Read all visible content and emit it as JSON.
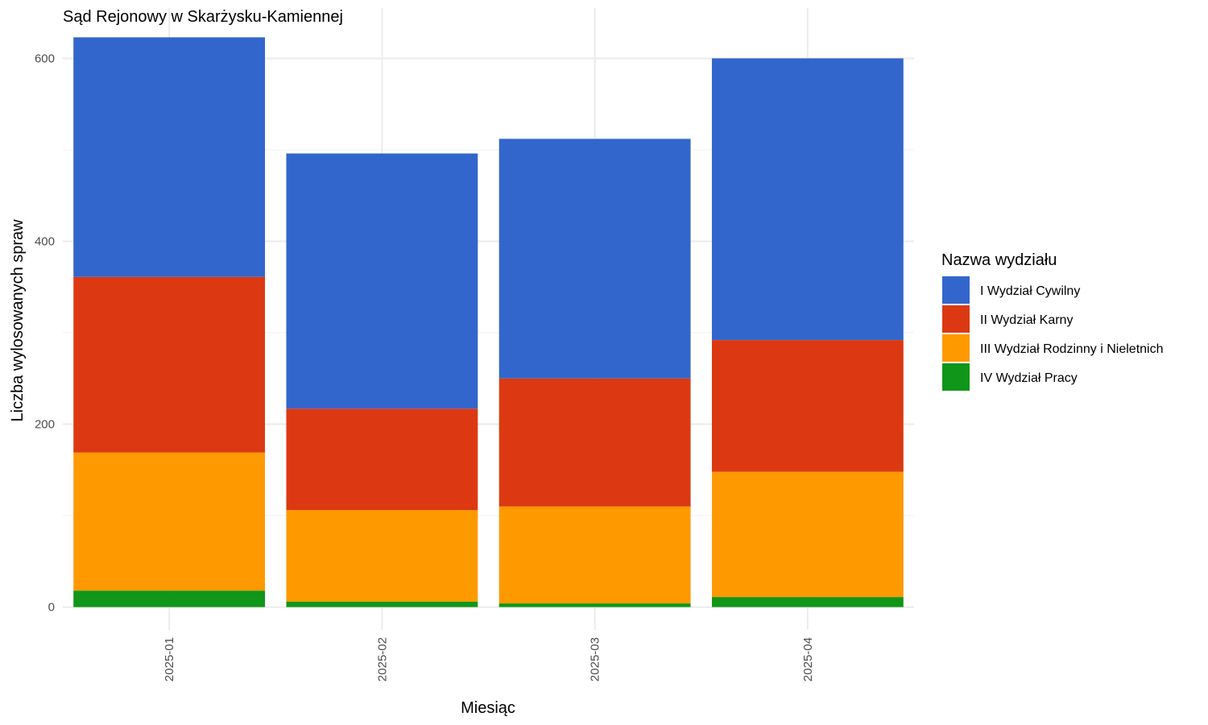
{
  "chart_data": {
    "type": "bar",
    "stacked": true,
    "title": "Sąd Rejonowy w Skarżysku-Kamiennej",
    "xlabel": "Miesiąc",
    "ylabel": "Liczba wylosowanych spraw",
    "categories": [
      "2025-01",
      "2025-02",
      "2025-03",
      "2025-04"
    ],
    "ylim": [
      -25,
      655
    ],
    "yticks": [
      0,
      200,
      400,
      600
    ],
    "grid": true,
    "legend": {
      "title": "Nazwa wydziału",
      "position": "right"
    },
    "series": [
      {
        "name": "IV Wydział Pracy",
        "color": "#109618",
        "values": [
          18,
          6,
          4,
          11
        ]
      },
      {
        "name": "III Wydział Rodzinny i Nieletnich",
        "color": "#FF9900",
        "values": [
          151,
          100,
          106,
          137
        ]
      },
      {
        "name": "II Wydział Karny",
        "color": "#DC3912",
        "values": [
          192,
          111,
          140,
          144
        ]
      },
      {
        "name": "I Wydział Cywilny",
        "color": "#3366CC",
        "values": [
          262,
          279,
          262,
          308
        ]
      }
    ],
    "legend_order": [
      "I Wydział Cywilny",
      "II Wydział Karny",
      "III Wydział Rodzinny i Nieletnich",
      "IV Wydział Pracy"
    ]
  }
}
